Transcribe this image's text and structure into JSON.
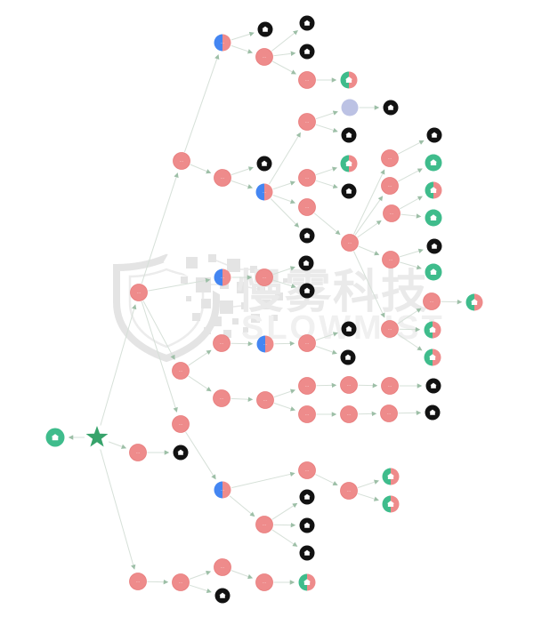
{
  "watermark": {
    "cn": "慢雾科技",
    "en": "SLOWMIST"
  },
  "glyphs": {
    "node_label": "⋯",
    "icon": "building"
  },
  "colors": {
    "red": "#ee8b8b",
    "redStroke": "#e87c7c",
    "black": "#121212",
    "green": "#3fbc8c",
    "blue": "#4486f2",
    "lavender": "#bcc2e4",
    "star": "#37a36b",
    "edge": "#d6e0d8",
    "arrow": "#9dbfa7",
    "icon": "#ffffff",
    "watermark_gray": "#e5e5e5"
  },
  "graph": {
    "node_fields": [
      "id",
      "x",
      "y",
      "type"
    ],
    "nodes": [
      [
        "n1",
        250,
        48,
        "bluered"
      ],
      [
        "n2",
        298,
        33,
        "black"
      ],
      [
        "n3",
        345,
        26,
        "black"
      ],
      [
        "n4",
        297,
        64,
        "red"
      ],
      [
        "n5",
        345,
        58,
        "black"
      ],
      [
        "n6",
        345,
        90,
        "red"
      ],
      [
        "n7",
        392,
        90,
        "mixed"
      ],
      [
        "n8",
        204,
        181,
        "red"
      ],
      [
        "n9",
        250,
        200,
        "red"
      ],
      [
        "n10",
        297,
        184,
        "black"
      ],
      [
        "n11",
        297,
        216,
        "bluered"
      ],
      [
        "n12",
        345,
        137,
        "red"
      ],
      [
        "n13",
        393,
        121,
        "lavender"
      ],
      [
        "n14",
        439,
        121,
        "black"
      ],
      [
        "n15",
        392,
        152,
        "black"
      ],
      [
        "n16",
        345,
        200,
        "red"
      ],
      [
        "n17",
        392,
        184,
        "mixed"
      ],
      [
        "n18",
        392,
        215,
        "black"
      ],
      [
        "n19",
        345,
        233,
        "red"
      ],
      [
        "n20",
        345,
        265,
        "black"
      ],
      [
        "n21",
        393,
        273,
        "red"
      ],
      [
        "n22",
        438,
        178,
        "red"
      ],
      [
        "n23",
        488,
        152,
        "black"
      ],
      [
        "n24",
        438,
        209,
        "red"
      ],
      [
        "n25",
        487,
        183,
        "green"
      ],
      [
        "n26",
        440,
        240,
        "red"
      ],
      [
        "n27",
        487,
        214,
        "mixed"
      ],
      [
        "n28",
        487,
        245,
        "green"
      ],
      [
        "n29",
        439,
        292,
        "red"
      ],
      [
        "n30",
        488,
        277,
        "black"
      ],
      [
        "n31",
        487,
        306,
        "green"
      ],
      [
        "n32",
        156,
        329,
        "red"
      ],
      [
        "n33",
        250,
        312,
        "bluered"
      ],
      [
        "n34",
        297,
        312,
        "red"
      ],
      [
        "n35",
        344,
        296,
        "black"
      ],
      [
        "n36",
        345,
        327,
        "black"
      ],
      [
        "n37",
        438,
        370,
        "red"
      ],
      [
        "n38",
        485,
        339,
        "red"
      ],
      [
        "n39",
        533,
        340,
        "mixed"
      ],
      [
        "n40",
        486,
        371,
        "mixed"
      ],
      [
        "n41",
        486,
        402,
        "mixed"
      ],
      [
        "n42",
        203,
        417,
        "red"
      ],
      [
        "n43",
        249,
        386,
        "red"
      ],
      [
        "n44",
        298,
        387,
        "bluered"
      ],
      [
        "n45",
        345,
        386,
        "red"
      ],
      [
        "n46",
        392,
        370,
        "black"
      ],
      [
        "n47",
        391,
        402,
        "black"
      ],
      [
        "n48",
        249,
        448,
        "red"
      ],
      [
        "n49",
        298,
        450,
        "red"
      ],
      [
        "n50",
        345,
        434,
        "red"
      ],
      [
        "n51",
        392,
        433,
        "red"
      ],
      [
        "n52",
        438,
        434,
        "red"
      ],
      [
        "n53",
        487,
        434,
        "black"
      ],
      [
        "n54",
        345,
        466,
        "red"
      ],
      [
        "n55",
        392,
        466,
        "red"
      ],
      [
        "n56",
        437,
        465,
        "red"
      ],
      [
        "n57",
        486,
        464,
        "black"
      ],
      [
        "n58",
        109,
        492,
        "star"
      ],
      [
        "n59",
        62,
        492,
        "greenc"
      ],
      [
        "n60",
        155,
        509,
        "red"
      ],
      [
        "n61",
        203,
        509,
        "black"
      ],
      [
        "n62",
        203,
        477,
        "red"
      ],
      [
        "n63",
        250,
        551,
        "bluered"
      ],
      [
        "n64",
        345,
        529,
        "red"
      ],
      [
        "n65",
        392,
        552,
        "red"
      ],
      [
        "n66",
        439,
        536,
        "mixed"
      ],
      [
        "n67",
        439,
        567,
        "mixed"
      ],
      [
        "n68",
        297,
        590,
        "red"
      ],
      [
        "n69",
        345,
        559,
        "black"
      ],
      [
        "n70",
        345,
        591,
        "black"
      ],
      [
        "n71",
        345,
        622,
        "black"
      ],
      [
        "n72",
        155,
        654,
        "red"
      ],
      [
        "n73",
        203,
        655,
        "red"
      ],
      [
        "n74",
        250,
        638,
        "red"
      ],
      [
        "n75",
        250,
        670,
        "black"
      ],
      [
        "n76",
        297,
        655,
        "red"
      ],
      [
        "n77",
        345,
        655,
        "mixed"
      ]
    ],
    "edges": [
      [
        "n58",
        "n59"
      ],
      [
        "n58",
        "n32"
      ],
      [
        "n58",
        "n60"
      ],
      [
        "n58",
        "n72"
      ],
      [
        "n32",
        "n8"
      ],
      [
        "n32",
        "n33"
      ],
      [
        "n32",
        "n42"
      ],
      [
        "n32",
        "n62"
      ],
      [
        "n8",
        "n1"
      ],
      [
        "n8",
        "n9"
      ],
      [
        "n1",
        "n2"
      ],
      [
        "n1",
        "n4"
      ],
      [
        "n4",
        "n3"
      ],
      [
        "n4",
        "n5"
      ],
      [
        "n4",
        "n6"
      ],
      [
        "n6",
        "n7"
      ],
      [
        "n9",
        "n10"
      ],
      [
        "n9",
        "n11"
      ],
      [
        "n11",
        "n12"
      ],
      [
        "n11",
        "n16"
      ],
      [
        "n11",
        "n19"
      ],
      [
        "n11",
        "n20"
      ],
      [
        "n12",
        "n13"
      ],
      [
        "n12",
        "n15"
      ],
      [
        "n13",
        "n14"
      ],
      [
        "n16",
        "n17"
      ],
      [
        "n16",
        "n18"
      ],
      [
        "n19",
        "n21"
      ],
      [
        "n21",
        "n22"
      ],
      [
        "n21",
        "n24"
      ],
      [
        "n21",
        "n26"
      ],
      [
        "n21",
        "n29"
      ],
      [
        "n21",
        "n37"
      ],
      [
        "n22",
        "n23"
      ],
      [
        "n24",
        "n25"
      ],
      [
        "n26",
        "n27"
      ],
      [
        "n26",
        "n28"
      ],
      [
        "n29",
        "n30"
      ],
      [
        "n29",
        "n31"
      ],
      [
        "n33",
        "n34"
      ],
      [
        "n34",
        "n35"
      ],
      [
        "n34",
        "n36"
      ],
      [
        "n37",
        "n38"
      ],
      [
        "n37",
        "n40"
      ],
      [
        "n37",
        "n41"
      ],
      [
        "n38",
        "n39"
      ],
      [
        "n42",
        "n43"
      ],
      [
        "n42",
        "n48"
      ],
      [
        "n43",
        "n44"
      ],
      [
        "n44",
        "n45"
      ],
      [
        "n45",
        "n46"
      ],
      [
        "n45",
        "n47"
      ],
      [
        "n48",
        "n49"
      ],
      [
        "n49",
        "n50"
      ],
      [
        "n49",
        "n54"
      ],
      [
        "n50",
        "n51"
      ],
      [
        "n51",
        "n52"
      ],
      [
        "n52",
        "n53"
      ],
      [
        "n54",
        "n55"
      ],
      [
        "n55",
        "n56"
      ],
      [
        "n56",
        "n57"
      ],
      [
        "n60",
        "n61"
      ],
      [
        "n62",
        "n63"
      ],
      [
        "n63",
        "n64"
      ],
      [
        "n63",
        "n68"
      ],
      [
        "n64",
        "n65"
      ],
      [
        "n65",
        "n66"
      ],
      [
        "n65",
        "n67"
      ],
      [
        "n68",
        "n69"
      ],
      [
        "n68",
        "n70"
      ],
      [
        "n68",
        "n71"
      ],
      [
        "n72",
        "n73"
      ],
      [
        "n73",
        "n74"
      ],
      [
        "n73",
        "n75"
      ],
      [
        "n74",
        "n76"
      ],
      [
        "n76",
        "n77"
      ]
    ]
  }
}
